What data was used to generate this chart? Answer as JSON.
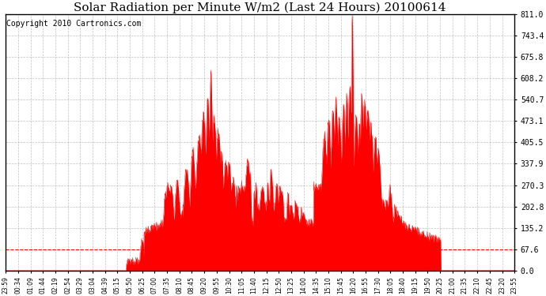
{
  "title": "Solar Radiation per Minute W/m2 (Last 24 Hours) 20100614",
  "copyright": "Copyright 2010 Cartronics.com",
  "ymax": 811.0,
  "ymin": 0.0,
  "yticks": [
    0.0,
    67.6,
    135.2,
    202.8,
    270.3,
    337.9,
    405.5,
    473.1,
    540.7,
    608.2,
    675.8,
    743.4,
    811.0
  ],
  "xlabels": [
    "23:59",
    "00:34",
    "01:09",
    "01:44",
    "02:19",
    "02:54",
    "03:29",
    "03:04",
    "04:39",
    "05:15",
    "05:50",
    "06:25",
    "07:00",
    "07:35",
    "08:10",
    "08:45",
    "09:20",
    "09:55",
    "10:30",
    "11:05",
    "11:40",
    "12:15",
    "12:50",
    "13:25",
    "14:00",
    "14:35",
    "15:10",
    "15:45",
    "16:20",
    "16:55",
    "17:30",
    "18:05",
    "18:40",
    "19:15",
    "19:50",
    "20:25",
    "21:00",
    "21:35",
    "22:10",
    "22:45",
    "23:20",
    "23:55"
  ],
  "fill_color": "#FF0000",
  "line_color": "#FF0000",
  "background_color": "#FFFFFF",
  "plot_bg_color": "#FFFFFF",
  "grid_color": "#999999",
  "dashed_line_y": 67.6,
  "title_fontsize": 11,
  "copyright_fontsize": 7
}
